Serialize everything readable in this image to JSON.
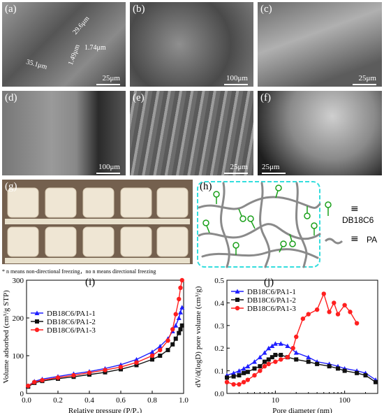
{
  "panels": {
    "a": {
      "label": "(a)",
      "scale": "25μm",
      "annotations": [
        "29.6μm",
        "1.74μm",
        "1.49μm",
        "35.1μm"
      ]
    },
    "b": {
      "label": "(b)",
      "scale": "100μm"
    },
    "c": {
      "label": "(c)",
      "scale": "25μm"
    },
    "d": {
      "label": "(d)",
      "scale": "100μm"
    },
    "e": {
      "label": "(e)",
      "scale": "25μm"
    },
    "f": {
      "label": "(f)",
      "scale": "25μm"
    },
    "g": {
      "label": "(g)"
    },
    "h": {
      "label": "(h)",
      "legend": [
        {
          "symbol": "≡",
          "text": "DB18C6"
        },
        {
          "symbol": "≡",
          "text": "PA"
        }
      ]
    },
    "i": {
      "label": "(i)"
    },
    "j": {
      "label": "(j)"
    }
  },
  "footnote": "* n means non-directional freezing，no n means directional freezing",
  "colors": {
    "series1": "#1f1fff",
    "series2": "#111111",
    "series3": "#ff1f1f",
    "network": "#8a8a8a",
    "crown": "#1aa01a",
    "frame": "#33dddd"
  },
  "chart_data": [
    {
      "type": "line",
      "panel": "(i)",
      "xlabel": "Relative pressure (P/P₀)",
      "ylabel": "Volume adsorbed (cm³/g STP)",
      "xlim": [
        0.0,
        1.0
      ],
      "ylim": [
        0,
        300
      ],
      "xticks": [
        "0.0",
        "0.2",
        "0.4",
        "0.6",
        "0.8",
        "1.0"
      ],
      "yticks": [
        "0",
        "100",
        "200",
        "300"
      ],
      "legend_position": "upper-left",
      "series": [
        {
          "name": "DB18C6/PA1-1",
          "marker": "triangle",
          "x": [
            0.01,
            0.05,
            0.1,
            0.2,
            0.3,
            0.4,
            0.5,
            0.6,
            0.7,
            0.8,
            0.85,
            0.9,
            0.93,
            0.95,
            0.97,
            0.98,
            0.99
          ],
          "y": [
            20,
            32,
            38,
            45,
            52,
            58,
            66,
            76,
            90,
            110,
            125,
            145,
            165,
            180,
            200,
            215,
            228
          ]
        },
        {
          "name": "DB18C6/PA1-2",
          "marker": "square",
          "x": [
            0.01,
            0.05,
            0.1,
            0.2,
            0.3,
            0.4,
            0.5,
            0.6,
            0.7,
            0.8,
            0.85,
            0.9,
            0.93,
            0.95,
            0.97,
            0.98,
            0.99
          ],
          "y": [
            18,
            28,
            33,
            39,
            44,
            50,
            56,
            64,
            75,
            90,
            100,
            115,
            130,
            145,
            160,
            170,
            180
          ]
        },
        {
          "name": "DB18C6/PA1-3",
          "marker": "circle",
          "x": [
            0.01,
            0.05,
            0.1,
            0.2,
            0.3,
            0.4,
            0.5,
            0.6,
            0.7,
            0.8,
            0.85,
            0.9,
            0.93,
            0.95,
            0.97,
            0.98,
            0.99
          ],
          "y": [
            20,
            30,
            35,
            42,
            48,
            55,
            62,
            70,
            82,
            100,
            115,
            140,
            170,
            210,
            250,
            280,
            300
          ]
        }
      ]
    },
    {
      "type": "line",
      "panel": "(j)",
      "xlabel": "Pore diameter (nm)",
      "ylabel": "dV/d(logD) pore volume  (cm³/g)",
      "xscale": "log",
      "xlim": [
        2,
        300
      ],
      "ylim": [
        0.0,
        0.5
      ],
      "xticks": [
        "10",
        "100"
      ],
      "yticks": [
        "0.0",
        "0.1",
        "0.2",
        "0.3",
        "0.4",
        "0.5"
      ],
      "legend_position": "upper-left",
      "series": [
        {
          "name": "DB18C6/PA1-1",
          "marker": "triangle",
          "x": [
            2,
            2.5,
            3,
            3.5,
            4,
            5,
            6,
            7,
            8,
            9,
            10,
            12,
            15,
            20,
            30,
            40,
            60,
            80,
            100,
            150,
            200,
            280
          ],
          "y": [
            0.08,
            0.09,
            0.1,
            0.11,
            0.12,
            0.14,
            0.16,
            0.18,
            0.2,
            0.21,
            0.22,
            0.22,
            0.21,
            0.18,
            0.16,
            0.14,
            0.13,
            0.12,
            0.11,
            0.1,
            0.09,
            0.06
          ]
        },
        {
          "name": "DB18C6/PA1-2",
          "marker": "square",
          "x": [
            2,
            2.5,
            3,
            3.5,
            4,
            5,
            6,
            7,
            8,
            9,
            10,
            12,
            15,
            20,
            30,
            40,
            60,
            80,
            100,
            150,
            200,
            280
          ],
          "y": [
            0.07,
            0.075,
            0.08,
            0.09,
            0.095,
            0.11,
            0.12,
            0.14,
            0.15,
            0.16,
            0.17,
            0.17,
            0.16,
            0.15,
            0.14,
            0.13,
            0.12,
            0.11,
            0.1,
            0.09,
            0.08,
            0.05
          ]
        },
        {
          "name": "DB18C6/PA1-3",
          "marker": "circle",
          "x": [
            2,
            2.5,
            3,
            3.5,
            4,
            5,
            6,
            7,
            8,
            10,
            12,
            15,
            18,
            20,
            25,
            30,
            40,
            50,
            60,
            70,
            80,
            100,
            120,
            150
          ],
          "y": [
            0.05,
            0.04,
            0.04,
            0.05,
            0.06,
            0.08,
            0.1,
            0.12,
            0.13,
            0.14,
            0.15,
            0.16,
            0.2,
            0.25,
            0.33,
            0.35,
            0.37,
            0.44,
            0.36,
            0.4,
            0.35,
            0.39,
            0.36,
            0.31
          ]
        }
      ]
    }
  ]
}
